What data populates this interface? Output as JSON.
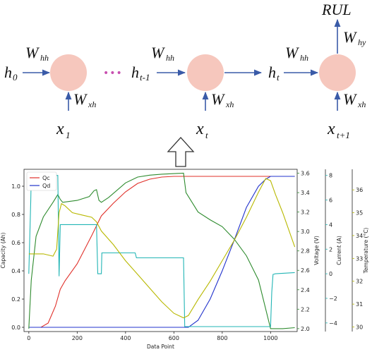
{
  "diagram": {
    "output_label": "RUL",
    "weights": {
      "hh": "W",
      "hh_sub": "hh",
      "xh": "W",
      "xh_sub": "xh",
      "hy": "W",
      "hy_sub": "hy"
    },
    "states": {
      "h0": "h",
      "h0_sub": "0",
      "hprev": "h",
      "hprev_sub": "t-1",
      "ht": "h",
      "ht_sub": "t"
    },
    "inputs": {
      "x1": "x",
      "x1_sub": "1",
      "xt": "x",
      "xt_sub": "t",
      "xnext": "x",
      "xnext_sub": "t+1"
    },
    "ellipsis": "•••",
    "colors": {
      "node": "#f6c7bd",
      "arrow": "#3a5ba8",
      "dots": "#c84fb0"
    }
  },
  "chart_data": {
    "type": "line",
    "xlabel": "Data Point",
    "xlim": [
      -20,
      1110
    ],
    "x_ticks": [
      "0",
      "200",
      "400",
      "600",
      "800",
      "1000"
    ],
    "axes": [
      {
        "label": "Capacity (Ah)",
        "ylim": [
          -0.03,
          1.12
        ],
        "ticks": [
          "0.0",
          "0.2",
          "0.4",
          "0.6",
          "0.8",
          "1.0"
        ],
        "color": "#222222"
      },
      {
        "label": "Voltage (V)",
        "ylim": [
          1.97,
          3.64
        ],
        "ticks": [
          "2.0",
          "2.2",
          "2.4",
          "2.6",
          "2.8",
          "3.0",
          "3.2",
          "3.4",
          "3.6"
        ],
        "color": "#2e8b2e"
      },
      {
        "label": "Current (A)",
        "ylim": [
          -4.7,
          8.5
        ],
        "ticks": [
          "−4",
          "−2",
          "0",
          "2",
          "4",
          "6",
          "8"
        ],
        "color": "#22b5b5"
      },
      {
        "label": "Temperature (°C)",
        "ylim": [
          29.8,
          36.9
        ],
        "ticks": [
          "30",
          "31",
          "32",
          "33",
          "34",
          "35",
          "36"
        ],
        "color": "#b8b800"
      }
    ],
    "legend": {
      "position": "top-left",
      "entries": [
        "Qc",
        "Qd"
      ]
    },
    "series": [
      {
        "name": "Qc",
        "axis": 0,
        "color": "#e0302a",
        "x": [
          0,
          50,
          80,
          110,
          130,
          150,
          200,
          260,
          300,
          350,
          400,
          450,
          500,
          550,
          600,
          640,
          700,
          800,
          900,
          1000,
          1100
        ],
        "y": [
          0,
          0,
          0.03,
          0.15,
          0.27,
          0.33,
          0.45,
          0.65,
          0.79,
          0.88,
          0.96,
          1.02,
          1.05,
          1.065,
          1.07,
          1.07,
          1.07,
          1.07,
          1.07,
          1.07,
          1.07
        ]
      },
      {
        "name": "Qd",
        "axis": 0,
        "color": "#2233cc",
        "x": [
          0,
          640,
          660,
          700,
          750,
          800,
          850,
          900,
          950,
          980,
          1000,
          1100
        ],
        "y": [
          0,
          0,
          0,
          0.05,
          0.2,
          0.4,
          0.62,
          0.85,
          1.0,
          1.05,
          1.07,
          1.07
        ]
      },
      {
        "axis": 1,
        "color": "#2e8b2e",
        "x": [
          0,
          10,
          30,
          60,
          100,
          120,
          130,
          140,
          200,
          250,
          270,
          280,
          290,
          300,
          330,
          400,
          450,
          500,
          550,
          640,
          650,
          700,
          750,
          800,
          850,
          900,
          950,
          990,
          1000,
          1050,
          1100
        ],
        "y": [
          2.0,
          2.5,
          2.95,
          3.15,
          3.3,
          3.38,
          3.33,
          3.3,
          3.32,
          3.36,
          3.42,
          3.43,
          3.32,
          3.3,
          3.35,
          3.5,
          3.56,
          3.58,
          3.59,
          3.6,
          3.4,
          3.2,
          3.12,
          3.05,
          2.92,
          2.75,
          2.5,
          2.1,
          2.0,
          2.0,
          2.01
        ]
      },
      {
        "axis": 2,
        "color": "#22b5b5",
        "x": [
          0,
          8,
          10,
          120,
          125,
          130,
          280,
          285,
          290,
          300,
          302,
          305,
          440,
          445,
          450,
          640,
          645,
          650,
          1000,
          1005,
          1010,
          1020,
          1100
        ],
        "y": [
          0,
          6,
          8,
          8,
          -0.2,
          4,
          4,
          0,
          0,
          0,
          1.7,
          1.7,
          1.7,
          1.3,
          1.3,
          1.3,
          -4.3,
          -4.3,
          -4.3,
          -1.5,
          -0.05,
          0,
          0.1
        ]
      },
      {
        "axis": 3,
        "color": "#b8b800",
        "x": [
          0,
          60,
          100,
          115,
          125,
          135,
          150,
          180,
          220,
          260,
          280,
          300,
          350,
          400,
          450,
          500,
          550,
          600,
          640,
          660,
          700,
          750,
          800,
          850,
          900,
          950,
          980,
          1000,
          1020,
          1050,
          1100
        ],
        "y": [
          33.2,
          33.2,
          33.1,
          33.4,
          35.0,
          35.4,
          35.3,
          35.0,
          34.9,
          34.8,
          34.6,
          34.2,
          33.6,
          32.9,
          32.3,
          31.7,
          31.1,
          30.6,
          30.4,
          30.5,
          31.2,
          32.0,
          32.9,
          33.8,
          34.8,
          35.9,
          36.5,
          36.4,
          35.8,
          35.0,
          33.5
        ]
      }
    ]
  }
}
